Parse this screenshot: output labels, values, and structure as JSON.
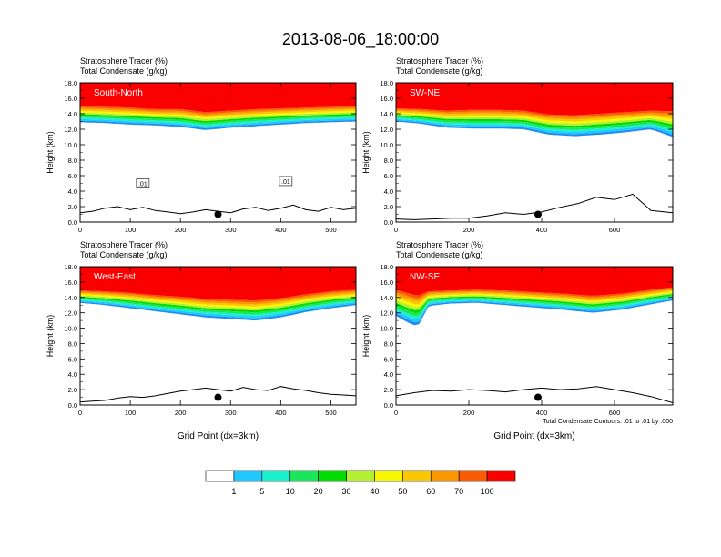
{
  "figure_title": "2013-08-06_18:00:00",
  "colors": {
    "levels": [
      "#ffffff",
      "#1e8cf0",
      "#1fc8ff",
      "#19f0cd",
      "#19e65a",
      "#00dc00",
      "#b4f032",
      "#f7f700",
      "#fac800",
      "#fa9600",
      "#fa5a00",
      "#fa0000"
    ],
    "terrain_line": "#000000"
  },
  "colorbar": {
    "labels": [
      "1",
      "5",
      "10",
      "20",
      "30",
      "40",
      "50",
      "60",
      "70",
      "100"
    ]
  },
  "chart_data": [
    {
      "type": "heatmap",
      "panel": "top-left",
      "label": "South-North",
      "title_lines": [
        "Stratosphere Tracer   (%)",
        "Total Condensate   (g/kg)"
      ],
      "ylabel": "Height (km)",
      "xlabel": "",
      "xlim": [
        0,
        550
      ],
      "ylim": [
        0,
        18
      ],
      "xticks": [
        0,
        100,
        200,
        300,
        400,
        500
      ],
      "xtick_labels": [
        "0",
        "100",
        "200",
        "300",
        "400",
        "500"
      ],
      "yticks": [
        0,
        2,
        4,
        6,
        8,
        10,
        12,
        14,
        16,
        18
      ],
      "ytick_labels": [
        "0.0",
        "2.0",
        "4.0",
        "6.0",
        "8.0",
        "10.0",
        "12.0",
        "14.0",
        "16.0",
        "18.0"
      ],
      "tracer_band": {
        "x": [
          0,
          50,
          100,
          150,
          200,
          250,
          300,
          350,
          400,
          450,
          500,
          550
        ],
        "base_km": [
          12.9,
          12.8,
          12.6,
          12.5,
          12.3,
          11.9,
          12.2,
          12.4,
          12.6,
          12.8,
          12.9,
          13.0
        ],
        "red_km": [
          15.0,
          14.9,
          14.8,
          14.6,
          14.6,
          14.2,
          14.4,
          14.6,
          14.7,
          14.8,
          14.9,
          15.0
        ]
      },
      "terrain": {
        "x": [
          0,
          25,
          50,
          75,
          100,
          125,
          150,
          175,
          200,
          225,
          250,
          275,
          300,
          325,
          350,
          375,
          400,
          425,
          450,
          475,
          500,
          525,
          550
        ],
        "km": [
          1.2,
          1.4,
          1.8,
          2.0,
          1.6,
          1.9,
          1.5,
          1.3,
          1.1,
          1.3,
          1.6,
          1.4,
          1.2,
          1.7,
          1.9,
          1.5,
          1.8,
          2.2,
          1.6,
          1.4,
          1.9,
          1.6,
          1.8
        ]
      },
      "marker": {
        "x": 275,
        "y_km": 1.0
      },
      "contour_label": ".01",
      "contour_label_points": [
        {
          "x": 125,
          "y_km": 5.0
        },
        {
          "x": 410,
          "y_km": 5.3
        }
      ]
    },
    {
      "type": "heatmap",
      "panel": "top-right",
      "label": "SW-NE",
      "title_lines": [
        "Stratosphere Tracer   (%)",
        "Total Condensate   (g/kg)"
      ],
      "ylabel": "Height (km)",
      "xlabel": "",
      "xlim": [
        0,
        760
      ],
      "ylim": [
        0,
        18
      ],
      "xticks": [
        0,
        200,
        400,
        600
      ],
      "xtick_labels": [
        "0",
        "200",
        "400",
        "600"
      ],
      "yticks": [
        0,
        2,
        4,
        6,
        8,
        10,
        12,
        14,
        16,
        18
      ],
      "ytick_labels": [
        "0.0",
        "2.0",
        "4.0",
        "6.0",
        "8.0",
        "10.0",
        "12.0",
        "14.0",
        "16.0",
        "18.0"
      ],
      "tracer_band": {
        "x": [
          0,
          70,
          140,
          210,
          280,
          350,
          420,
          490,
          560,
          630,
          700,
          760
        ],
        "base_km": [
          13.0,
          12.7,
          12.2,
          12.1,
          12.1,
          12.0,
          11.3,
          11.1,
          11.3,
          11.6,
          12.0,
          11.0
        ],
        "red_km": [
          14.7,
          14.6,
          14.4,
          14.5,
          14.5,
          14.4,
          13.9,
          13.8,
          14.0,
          14.2,
          14.4,
          14.3
        ]
      },
      "terrain": {
        "x": [
          0,
          50,
          100,
          150,
          200,
          250,
          300,
          350,
          400,
          450,
          500,
          550,
          600,
          650,
          700,
          760
        ],
        "km": [
          0.4,
          0.3,
          0.4,
          0.5,
          0.5,
          0.8,
          1.2,
          1.0,
          1.3,
          1.9,
          2.4,
          3.2,
          2.9,
          3.6,
          1.5,
          1.2
        ]
      },
      "marker": {
        "x": 390,
        "y_km": 1.0
      },
      "contour_label": "",
      "contour_label_points": []
    },
    {
      "type": "heatmap",
      "panel": "bottom-left",
      "label": "West-East",
      "title_lines": [
        "Stratosphere Tracer   (%)",
        "Total Condensate   (g/kg)"
      ],
      "ylabel": "Height (km)",
      "xlabel": "Grid Point (dx=3km)",
      "xlim": [
        0,
        550
      ],
      "ylim": [
        0,
        18
      ],
      "xticks": [
        0,
        100,
        200,
        300,
        400,
        500
      ],
      "xtick_labels": [
        "0",
        "100",
        "200",
        "300",
        "400",
        "500"
      ],
      "yticks": [
        0,
        2,
        4,
        6,
        8,
        10,
        12,
        14,
        16,
        18
      ],
      "ytick_labels": [
        "0.0",
        "2.0",
        "4.0",
        "6.0",
        "8.0",
        "10.0",
        "12.0",
        "14.0",
        "16.0",
        "18.0"
      ],
      "tracer_band": {
        "x": [
          0,
          50,
          100,
          150,
          200,
          250,
          300,
          350,
          400,
          450,
          500,
          550
        ],
        "base_km": [
          13.3,
          13.0,
          12.6,
          12.2,
          11.8,
          11.4,
          11.2,
          11.0,
          11.4,
          12.1,
          12.6,
          13.0
        ],
        "red_km": [
          14.9,
          14.8,
          14.6,
          14.3,
          14.1,
          13.8,
          13.7,
          13.6,
          13.9,
          14.4,
          14.8,
          15.0
        ]
      },
      "terrain": {
        "x": [
          0,
          25,
          50,
          75,
          100,
          125,
          150,
          175,
          200,
          225,
          250,
          275,
          300,
          325,
          350,
          375,
          400,
          425,
          450,
          475,
          500,
          525,
          550
        ],
        "km": [
          0.4,
          0.5,
          0.6,
          0.9,
          1.1,
          1.0,
          1.2,
          1.5,
          1.8,
          2.0,
          2.2,
          2.0,
          1.8,
          2.3,
          2.0,
          1.9,
          2.4,
          2.1,
          1.9,
          1.6,
          1.4,
          1.3,
          1.2
        ]
      },
      "marker": {
        "x": 275,
        "y_km": 1.0
      },
      "contour_label": "",
      "contour_label_points": []
    },
    {
      "type": "heatmap",
      "panel": "bottom-right",
      "label": "NW-SE",
      "title_lines": [
        "Stratosphere Tracer   (%)",
        "Total Condensate   (g/kg)"
      ],
      "ylabel": "Height (km)",
      "xlabel": "Grid Point (dx=3km)",
      "footnote": "Total Condensate Contours: .01 to .01 by .000",
      "xlim": [
        0,
        760
      ],
      "ylim": [
        0,
        18
      ],
      "xticks": [
        0,
        200,
        400,
        600
      ],
      "xtick_labels": [
        "0",
        "200",
        "400",
        "600"
      ],
      "yticks": [
        0,
        2,
        4,
        6,
        8,
        10,
        12,
        14,
        16,
        18
      ],
      "ytick_labels": [
        "0.0",
        "2.0",
        "4.0",
        "6.0",
        "8.0",
        "10.0",
        "12.0",
        "14.0",
        "16.0",
        "18.0"
      ],
      "tracer_band": {
        "x": [
          0,
          30,
          60,
          90,
          150,
          220,
          300,
          380,
          460,
          540,
          620,
          700,
          760
        ],
        "base_km": [
          11.6,
          10.8,
          10.2,
          12.9,
          13.2,
          13.3,
          13.0,
          12.7,
          12.4,
          12.0,
          12.4,
          13.1,
          13.6
        ],
        "red_km": [
          15.0,
          14.6,
          14.2,
          14.8,
          14.9,
          15.0,
          14.9,
          14.7,
          14.5,
          14.2,
          14.5,
          15.0,
          15.3
        ]
      },
      "terrain": {
        "x": [
          0,
          50,
          100,
          150,
          200,
          250,
          300,
          350,
          400,
          450,
          500,
          550,
          600,
          650,
          700,
          760
        ],
        "km": [
          1.2,
          1.6,
          1.9,
          1.8,
          2.0,
          1.9,
          1.7,
          2.0,
          2.2,
          2.0,
          2.1,
          2.4,
          2.0,
          1.6,
          1.1,
          0.3
        ]
      },
      "marker": {
        "x": 390,
        "y_km": 1.0
      },
      "contour_label": "",
      "contour_label_points": []
    }
  ]
}
